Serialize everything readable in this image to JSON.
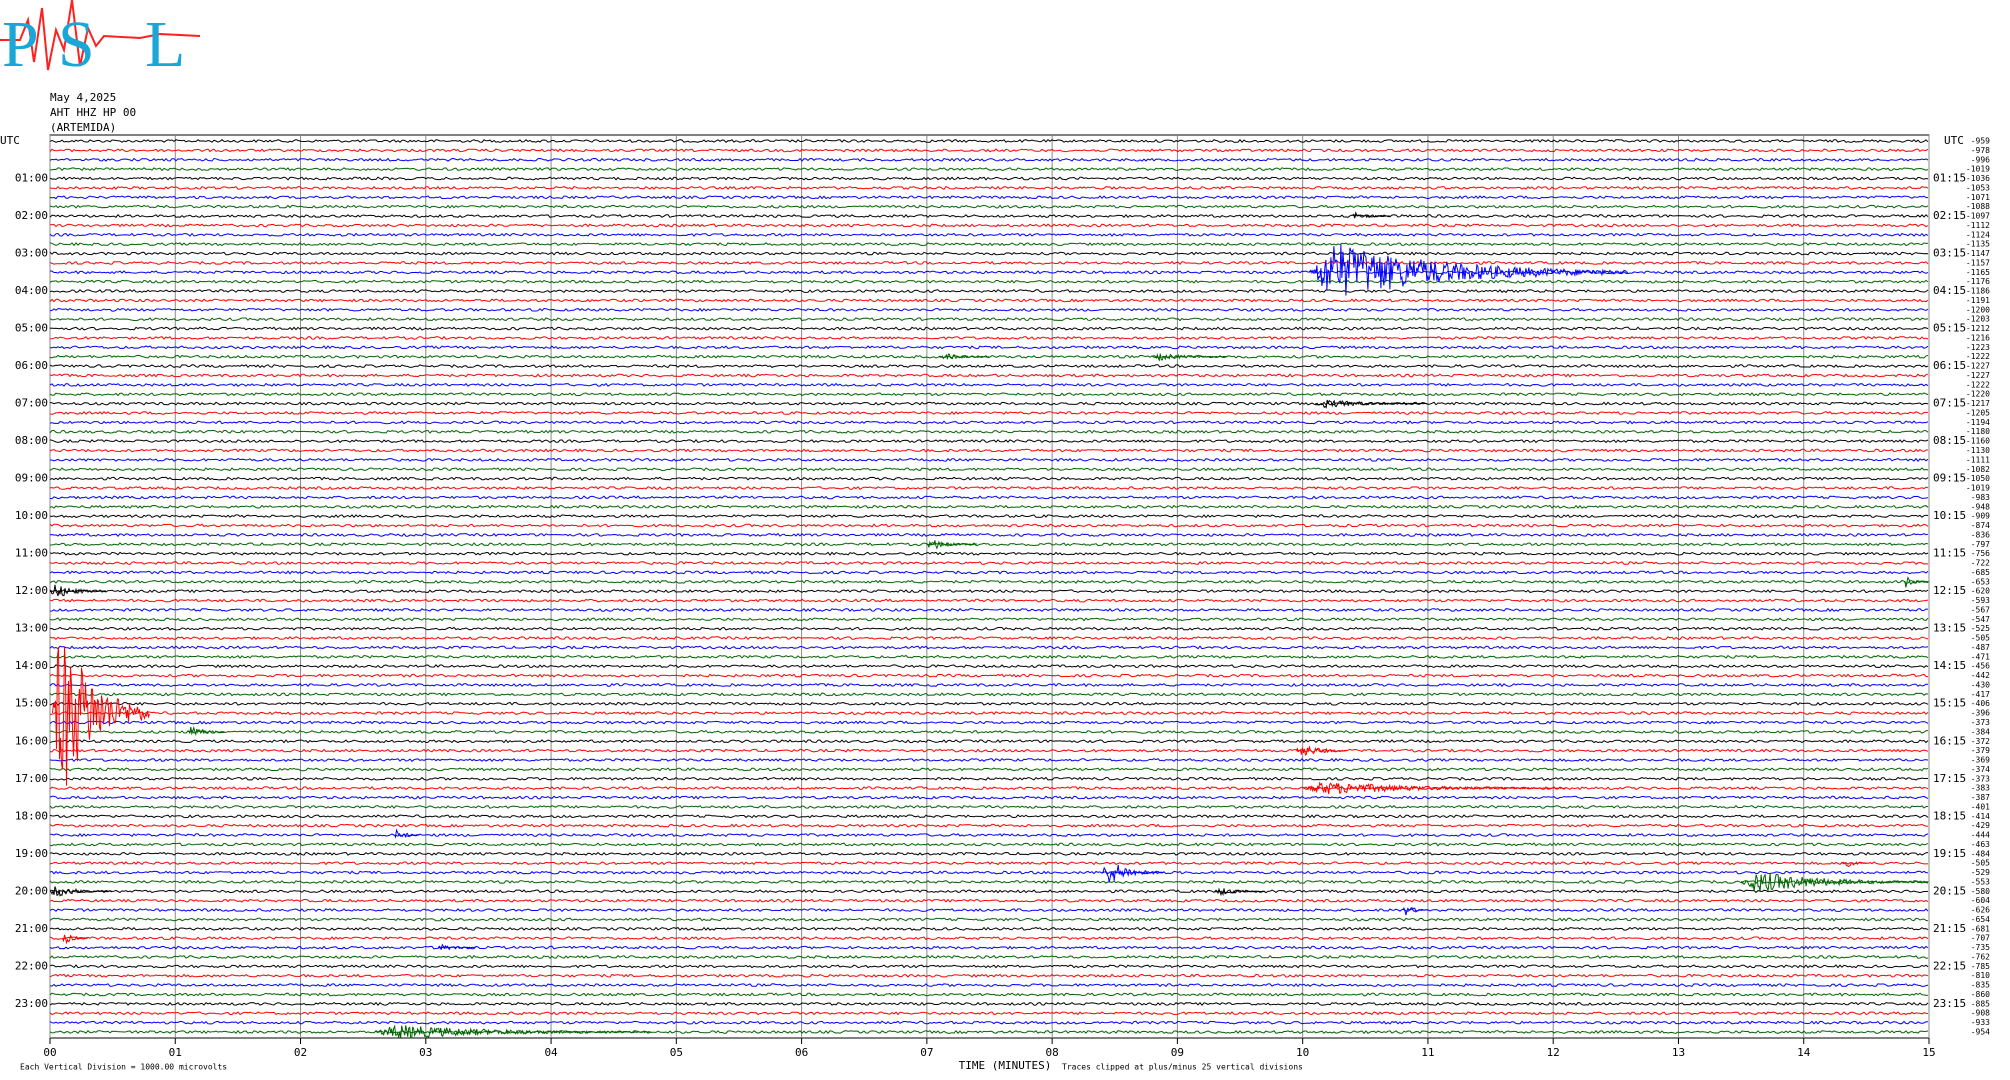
{
  "logo": {
    "letters": [
      "P",
      "S",
      "L"
    ]
  },
  "chart_data": {
    "type": "helicorder",
    "header": [
      "May 4,2025",
      "AHT HHZ HP 00",
      "(ARTEMIDA)"
    ],
    "left_labels": [
      "UTC",
      "01:00",
      "02:00",
      "03:00",
      "04:00",
      "05:00",
      "06:00",
      "07:00",
      "08:00",
      "09:00",
      "10:00",
      "11:00",
      "12:00",
      "13:00",
      "14:00",
      "15:00",
      "16:00",
      "17:00",
      "18:00",
      "19:00",
      "20:00",
      "21:00",
      "22:00",
      "23:00"
    ],
    "right_labels": [
      "UTC",
      "01:15",
      "02:15",
      "03:15",
      "04:15",
      "05:15",
      "06:15",
      "07:15",
      "08:15",
      "09:15",
      "10:15",
      "11:15",
      "12:15",
      "13:15",
      "14:15",
      "15:15",
      "16:15",
      "17:15",
      "18:15",
      "19:15",
      "20:15",
      "21:15",
      "22:15",
      "23:15"
    ],
    "offsets": [
      -959,
      -978,
      -996,
      -1019,
      -1036,
      -1053,
      -1071,
      -1088,
      -1097,
      -1112,
      -1124,
      -1135,
      -1147,
      -1157,
      -1165,
      -1176,
      -1186,
      -1191,
      -1200,
      -1203,
      -1212,
      -1216,
      -1223,
      -1222,
      -1227,
      -1227,
      -1222,
      -1220,
      -1217,
      -1205,
      -1194,
      -1180,
      -1160,
      -1130,
      -1111,
      -1082,
      -1050,
      -1019,
      -983,
      -948,
      -909,
      -874,
      -836,
      -797,
      -756,
      -722,
      -685,
      -653,
      -620,
      -593,
      -567,
      -547,
      -525,
      -505,
      -487,
      -471,
      -456,
      -442,
      -430,
      -417,
      -406,
      -396,
      -373,
      -384,
      -372,
      -379,
      -369,
      -374,
      -373,
      -383,
      -387,
      -401,
      -414,
      -429,
      -444,
      -463,
      -484,
      -505,
      -529,
      -553,
      -580,
      -604,
      -626,
      -654,
      -681,
      -707,
      -735,
      -762,
      -785,
      -810,
      -835,
      -860,
      -885,
      -908,
      -933,
      -954
    ],
    "colors": [
      "#000000",
      "#ff0000",
      "#0000ff",
      "#006400"
    ],
    "xlim": [
      0,
      15
    ],
    "xticks": [
      {
        "value": 0,
        "label": "00"
      },
      {
        "value": 1,
        "label": "01"
      },
      {
        "value": 2,
        "label": "02"
      },
      {
        "value": 3,
        "label": "03"
      },
      {
        "value": 4,
        "label": "04"
      },
      {
        "value": 5,
        "label": "05"
      },
      {
        "value": 6,
        "label": "06"
      },
      {
        "value": 7,
        "label": "07"
      },
      {
        "value": 8,
        "label": "08"
      },
      {
        "value": 9,
        "label": "09"
      },
      10,
      11,
      12,
      13,
      14,
      15
    ],
    "xlabel": "TIME (MINUTES)",
    "scale_note": "Each Vertical Division = 1000.00 microvolts",
    "clip_note": "Traces clipped at plus/minus 25 vertical divisions",
    "grid": true,
    "events": [
      {
        "trace": 14,
        "start": 10.05,
        "end": 12.6,
        "amp": 4
      },
      {
        "trace": 61,
        "start": 0.02,
        "end": 0.8,
        "amp": 12
      },
      {
        "trace": 48,
        "start": 0.0,
        "end": 0.45,
        "amp": 1
      },
      {
        "trace": 63,
        "start": 1.1,
        "end": 1.4,
        "amp": 0.8
      },
      {
        "trace": 65,
        "start": 9.95,
        "end": 10.35,
        "amp": 1
      },
      {
        "trace": 69,
        "start": 10.0,
        "end": 12.1,
        "amp": 0.9
      },
      {
        "trace": 74,
        "start": 2.75,
        "end": 2.95,
        "amp": 0.8
      },
      {
        "trace": 78,
        "start": 8.4,
        "end": 8.9,
        "amp": 1.8
      },
      {
        "trace": 77,
        "start": 14.3,
        "end": 14.5,
        "amp": 0.8
      },
      {
        "trace": 79,
        "start": 13.5,
        "end": 15,
        "amp": 1.5
      },
      {
        "trace": 80,
        "start": 0.0,
        "end": 0.5,
        "amp": 0.8
      },
      {
        "trace": 80,
        "start": 9.3,
        "end": 9.7,
        "amp": 0.6
      },
      {
        "trace": 82,
        "start": 10.8,
        "end": 11.0,
        "amp": 0.9
      },
      {
        "trace": 85,
        "start": 0.1,
        "end": 0.3,
        "amp": 0.8
      },
      {
        "trace": 86,
        "start": 3.1,
        "end": 3.4,
        "amp": 0.5
      },
      {
        "trace": 95,
        "start": 2.6,
        "end": 4.8,
        "amp": 1
      },
      {
        "trace": 43,
        "start": 7.0,
        "end": 7.4,
        "amp": 0.8
      },
      {
        "trace": 47,
        "start": 14.8,
        "end": 15,
        "amp": 0.8
      },
      {
        "trace": 23,
        "start": 7.1,
        "end": 7.5,
        "amp": 0.5
      },
      {
        "trace": 23,
        "start": 8.8,
        "end": 9.4,
        "amp": 0.5
      },
      {
        "trace": 8,
        "start": 10.4,
        "end": 10.7,
        "amp": 0.6
      },
      {
        "trace": 28,
        "start": 10.1,
        "end": 11.0,
        "amp": 0.6
      }
    ]
  }
}
